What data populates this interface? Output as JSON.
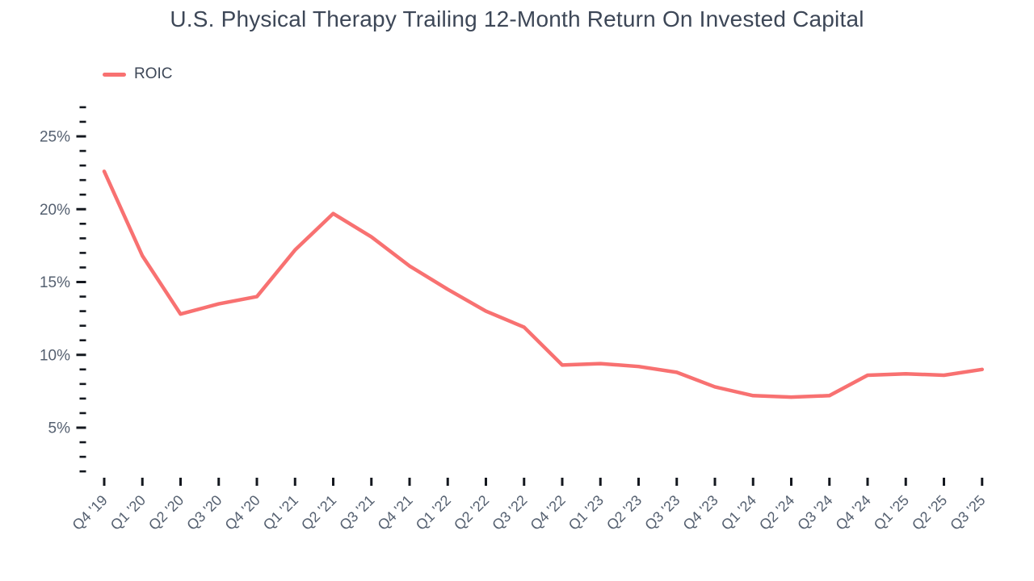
{
  "title": "U.S. Physical Therapy Trailing 12-Month Return On Invested Capital",
  "legend": {
    "series_label": "ROIC"
  },
  "colors": {
    "line": "#f87171",
    "title_text": "#3d4757",
    "axis_label": "#556070",
    "tick": "#14181f",
    "background": "#ffffff"
  },
  "chart_data": {
    "type": "line",
    "title": "U.S. Physical Therapy Trailing 12-Month Return On Invested Capital",
    "xlabel": "",
    "ylabel": "",
    "grid": false,
    "legend_position": "top-left",
    "categories": [
      "Q4 '19",
      "Q1 '20",
      "Q2 '20",
      "Q3 '20",
      "Q4 '20",
      "Q1 '21",
      "Q2 '21",
      "Q3 '21",
      "Q4 '21",
      "Q1 '22",
      "Q2 '22",
      "Q3 '22",
      "Q4 '22",
      "Q1 '23",
      "Q2 '23",
      "Q3 '23",
      "Q4 '23",
      "Q1 '24",
      "Q2 '24",
      "Q3 '24",
      "Q4 '24",
      "Q1 '25",
      "Q2 '25",
      "Q3 '25"
    ],
    "series": [
      {
        "name": "ROIC",
        "color": "#f87171",
        "values": [
          22.6,
          16.8,
          12.8,
          13.5,
          14.0,
          17.2,
          19.7,
          18.1,
          16.1,
          14.5,
          13.0,
          11.9,
          9.3,
          9.4,
          9.2,
          8.8,
          7.8,
          7.2,
          7.1,
          7.2,
          8.6,
          8.7,
          8.6,
          9.0
        ]
      }
    ],
    "y_axis": {
      "unit": "%",
      "range": [
        2,
        27
      ],
      "labeled_ticks": [
        5,
        10,
        15,
        20,
        25
      ],
      "minor_tick_step": 1
    }
  }
}
